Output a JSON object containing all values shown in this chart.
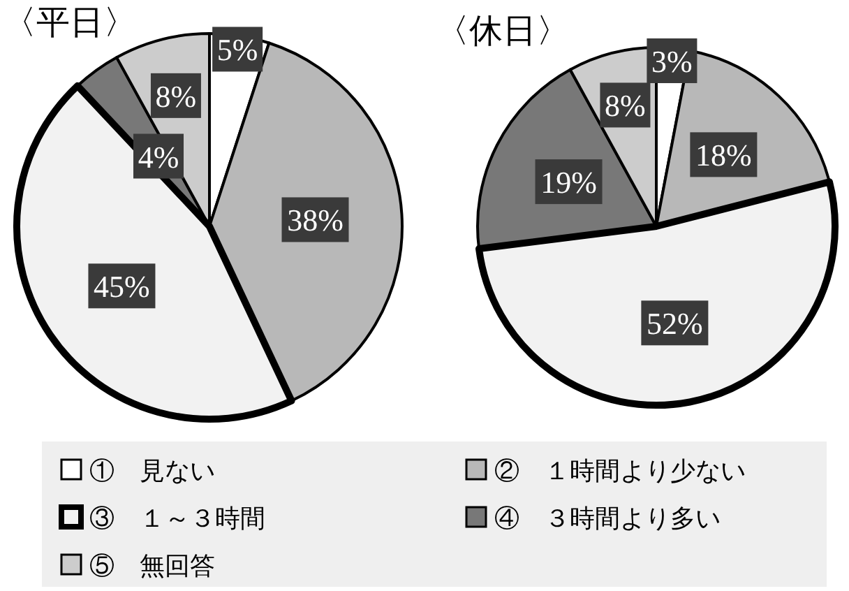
{
  "chart_data": [
    {
      "type": "pie",
      "title": "〈平日〉",
      "categories": [
        "①　見ない",
        "②　１時間より少ない",
        "③　１～３時間",
        "④　３時間より多い",
        "⑤　無回答"
      ],
      "values": [
        5,
        38,
        45,
        4,
        8
      ],
      "value_labels": [
        "5%",
        "38%",
        "45%",
        "4%",
        "8%"
      ],
      "colors": [
        "#ffffff",
        "#b8b8b8",
        "#f2f2f2",
        "#787878",
        "#cccccc"
      ],
      "legend": "bottom"
    },
    {
      "type": "pie",
      "title": "〈休日〉",
      "categories": [
        null,
        null,
        null,
        null,
        null
      ],
      "values": [
        3,
        18,
        52,
        19,
        8
      ],
      "value_labels": [
        "3%",
        "18%",
        "52%",
        "19%",
        "8%"
      ],
      "colors": [
        "#ffffff",
        "#b8b8b8",
        "#f2f2f2",
        "#787878",
        "#cccccc"
      ]
    }
  ]
}
